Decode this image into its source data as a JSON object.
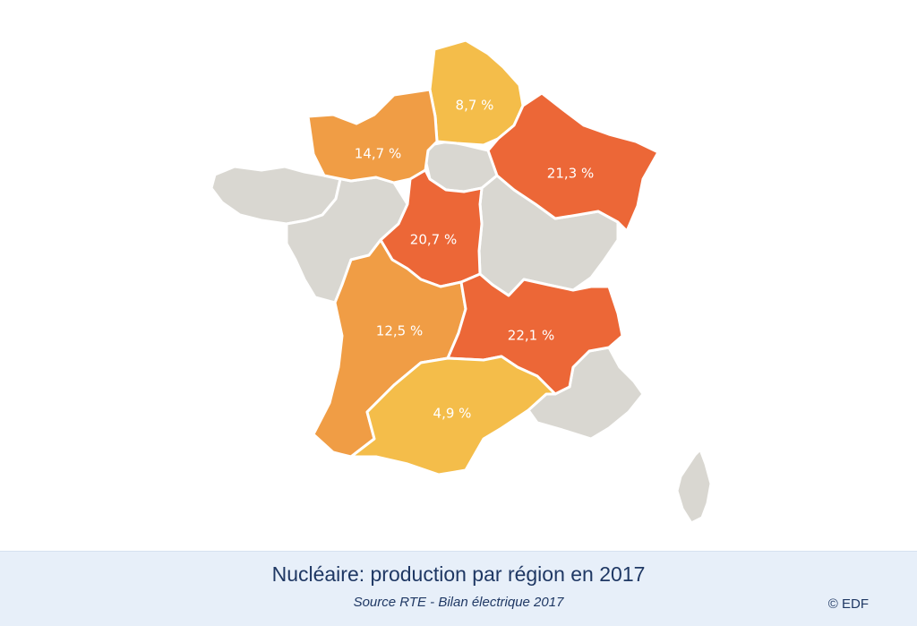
{
  "colors": {
    "no_production": "#d9d7d1",
    "low": "#f4bd4a",
    "medium": "#f09d45",
    "high": "#ec6737",
    "label_text": "#ffffff",
    "footer_bg": "#e7eff9",
    "footer_text": "#1f3864"
  },
  "regions": [
    {
      "name": "hauts-de-france",
      "share_label": "8,7 %",
      "tier": "low"
    },
    {
      "name": "normandie",
      "share_label": "14,7 %",
      "tier": "medium"
    },
    {
      "name": "grand-est",
      "share_label": "21,3 %",
      "tier": "high"
    },
    {
      "name": "centre-val-de-loire",
      "share_label": "20,7 %",
      "tier": "high"
    },
    {
      "name": "nouvelle-aquitaine",
      "share_label": "12,5 %",
      "tier": "medium"
    },
    {
      "name": "auvergne-rhone-alpes",
      "share_label": "22,1 %",
      "tier": "high"
    },
    {
      "name": "occitanie",
      "share_label": "4,9 %",
      "tier": "low"
    },
    {
      "name": "ile-de-france",
      "share_label": "",
      "tier": "no_production"
    },
    {
      "name": "bretagne",
      "share_label": "",
      "tier": "no_production"
    },
    {
      "name": "pays-de-la-loire",
      "share_label": "",
      "tier": "no_production"
    },
    {
      "name": "bourgogne-franche-comte",
      "share_label": "",
      "tier": "no_production"
    },
    {
      "name": "provence-alpes-cote-dazur",
      "share_label": "",
      "tier": "no_production"
    },
    {
      "name": "corse",
      "share_label": "",
      "tier": "no_production"
    }
  ],
  "footer": {
    "title": "Nucléaire: production par région en 2017",
    "source": "Source RTE - Bilan électrique 2017",
    "copyright": "© EDF"
  }
}
